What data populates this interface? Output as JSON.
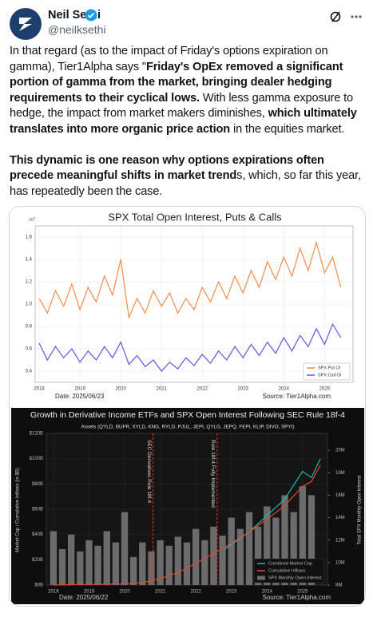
{
  "header": {
    "name": "Neil Sethi",
    "handle": "@neilksethi"
  },
  "tweet": {
    "paragraphs": [
      [
        {
          "text": "In that regard (as to the impact of Friday's options expiration on gamma), Tier1Alpha says \"",
          "bold": false
        },
        {
          "text": "Friday's OpEx removed a significant portion of gamma from the market, bringing dealer hedging requirements to their cyclical lows.",
          "bold": true
        },
        {
          "text": " With less gamma exposure to hedge, the impact from market makers diminishes, ",
          "bold": false
        },
        {
          "text": "which ultimately translates into more organic price action",
          "bold": true
        },
        {
          "text": " in the equities market.",
          "bold": false
        }
      ],
      [
        {
          "text": "This dynamic is one reason why options expirations often precede meaningful shifts in market trend",
          "bold": true
        },
        {
          "text": "s, which, so far this year, has repeatedly been the case.",
          "bold": false
        }
      ]
    ]
  },
  "chart_data": [
    {
      "type": "line",
      "title": "SPX Total Open Interest, Puts & Calls",
      "y_scale_label": "1e7",
      "footer_left": "Date: 2025/06/23",
      "footer_right": "Source: Tier1Alpha.com",
      "xlim": [
        2017.9,
        2025.7
      ],
      "xticks": [
        2018,
        2019,
        2020,
        2021,
        2022,
        2023,
        2024,
        2025
      ],
      "ylim": [
        0.3,
        1.7
      ],
      "yticks": [
        0.4,
        0.6,
        0.8,
        {
          "value": 1,
          "label": "1.0"
        },
        1.2,
        1.4,
        1.6
      ],
      "grid": true,
      "legend": "lower right",
      "x": [
        2018.0,
        2018.2,
        2018.4,
        2018.6,
        2018.8,
        2019.0,
        2019.2,
        2019.4,
        2019.6,
        2019.8,
        2020.0,
        2020.2,
        2020.4,
        2020.6,
        2020.8,
        2021.0,
        2021.2,
        2021.4,
        2021.6,
        2021.8,
        2022.0,
        2022.2,
        2022.4,
        2022.6,
        2022.8,
        2023.0,
        2023.2,
        2023.4,
        2023.6,
        2023.8,
        2024.0,
        2024.2,
        2024.4,
        2024.6,
        2024.8,
        2025.0,
        2025.2,
        2025.4
      ],
      "series": [
        {
          "name": "SPX Put OI",
          "color": "#f28b4c",
          "values": [
            1.05,
            0.92,
            1.12,
            0.98,
            1.18,
            0.95,
            1.15,
            1.02,
            1.25,
            1.08,
            1.4,
            0.88,
            1.05,
            0.92,
            1.12,
            0.98,
            1.1,
            0.92,
            1.05,
            0.95,
            1.15,
            1.02,
            1.2,
            1.05,
            1.25,
            1.1,
            1.3,
            1.15,
            1.38,
            1.22,
            1.42,
            1.25,
            1.5,
            1.3,
            1.55,
            1.28,
            1.42,
            1.15
          ]
        },
        {
          "name": "SPX Call OI",
          "color": "#5b55e8",
          "values": [
            0.65,
            0.5,
            0.62,
            0.52,
            0.6,
            0.48,
            0.58,
            0.5,
            0.62,
            0.52,
            0.66,
            0.46,
            0.54,
            0.44,
            0.5,
            0.4,
            0.48,
            0.42,
            0.52,
            0.45,
            0.55,
            0.47,
            0.58,
            0.5,
            0.62,
            0.52,
            0.64,
            0.54,
            0.66,
            0.56,
            0.7,
            0.58,
            0.72,
            0.62,
            0.78,
            0.64,
            0.82,
            0.7
          ]
        }
      ]
    },
    {
      "type": "bar-line",
      "title": "Growth in Derivative Income ETFs and SPX Open Interest Following SEC Rule 18f-4",
      "subtitle": "Assets (QYLD, BUFR, XYLD, KNG, RYLD, PJUL, JEPI, QYLG, JEPQ, FEPI, KLIP, DIVO, SPYI)",
      "ylabel": "Market Cap / Cumulative Inflows (in $B)",
      "y2label": "Total SPX Monthly Open Interest",
      "footer_left": "Date: 2025/06/22",
      "footer_right": "Source: Tier1Alpha.com",
      "xlim": [
        2017.8,
        2025.7
      ],
      "xticks": [
        2018,
        2019,
        2020,
        2021,
        2022,
        2023,
        2024,
        2025
      ],
      "ylim": [
        0,
        120
      ],
      "yticks": [
        {
          "value": 0,
          "label": "$0B"
        },
        {
          "value": 20,
          "label": "$20B"
        },
        {
          "value": 40,
          "label": "$40B"
        },
        {
          "value": 60,
          "label": "$60B"
        },
        {
          "value": 80,
          "label": "$80B"
        },
        {
          "value": 100,
          "label": "$100B"
        },
        {
          "value": 120,
          "label": "$120B"
        }
      ],
      "y2lim": [
        8,
        21.5
      ],
      "y2ticks": [
        {
          "value": 8,
          "label": "8M"
        },
        {
          "value": 10,
          "label": "10M"
        },
        {
          "value": 12,
          "label": "12M"
        },
        {
          "value": 14,
          "label": "14M"
        },
        {
          "value": 16,
          "label": "16M"
        },
        {
          "value": 18,
          "label": "18M"
        },
        {
          "value": 20,
          "label": "20M"
        }
      ],
      "grid": true,
      "legend": "lower right",
      "annotations": [
        {
          "text": "SEC Derivatives Rule 18f-4",
          "x": 2020.8
        },
        {
          "text": "Rule 18f-4 Fully Implemented",
          "x": 2022.6
        }
      ],
      "series": [
        {
          "name": "Combined Market Cap",
          "type": "line",
          "color": "#1fb8aa",
          "x": [
            2022.8,
            2023.0,
            2023.5,
            2024.0,
            2024.5,
            2025.0,
            2025.25,
            2025.5
          ],
          "values": [
            28,
            32,
            42,
            55,
            68,
            90,
            85,
            100
          ]
        },
        {
          "name": "Cumulative Inflows",
          "type": "line",
          "color": "#e8452c",
          "x": [
            2018,
            2019,
            2020,
            2020.5,
            2021,
            2021.5,
            2022,
            2022.5,
            2023,
            2023.5,
            2024,
            2024.5,
            2025,
            2025.25,
            2025.5
          ],
          "values": [
            0,
            0.5,
            1,
            2,
            5,
            10,
            17,
            25,
            33,
            42,
            52,
            63,
            78,
            82,
            95
          ]
        },
        {
          "name": "SPX Monthly Open Interest",
          "type": "bar",
          "axis": "y2",
          "color": "#6b6b6b",
          "x": [
            2018.0,
            2018.25,
            2018.5,
            2018.75,
            2019.0,
            2019.25,
            2019.5,
            2019.75,
            2020.0,
            2020.25,
            2020.5,
            2020.75,
            2021.0,
            2021.25,
            2021.5,
            2021.75,
            2022.0,
            2022.25,
            2022.5,
            2022.75,
            2023.0,
            2023.25,
            2023.5,
            2023.75,
            2024.0,
            2024.25,
            2024.5,
            2024.75,
            2025.0,
            2025.25
          ],
          "values": [
            12.8,
            11.2,
            12.5,
            11.0,
            12.0,
            11.5,
            12.8,
            11.8,
            14.5,
            10.5,
            11.8,
            11.0,
            12.0,
            11.5,
            12.3,
            11.8,
            13.0,
            12.0,
            13.2,
            12.4,
            14.0,
            13.0,
            14.5,
            13.2,
            15.0,
            14.0,
            16.0,
            14.5,
            16.8,
            16.0
          ]
        }
      ]
    }
  ]
}
